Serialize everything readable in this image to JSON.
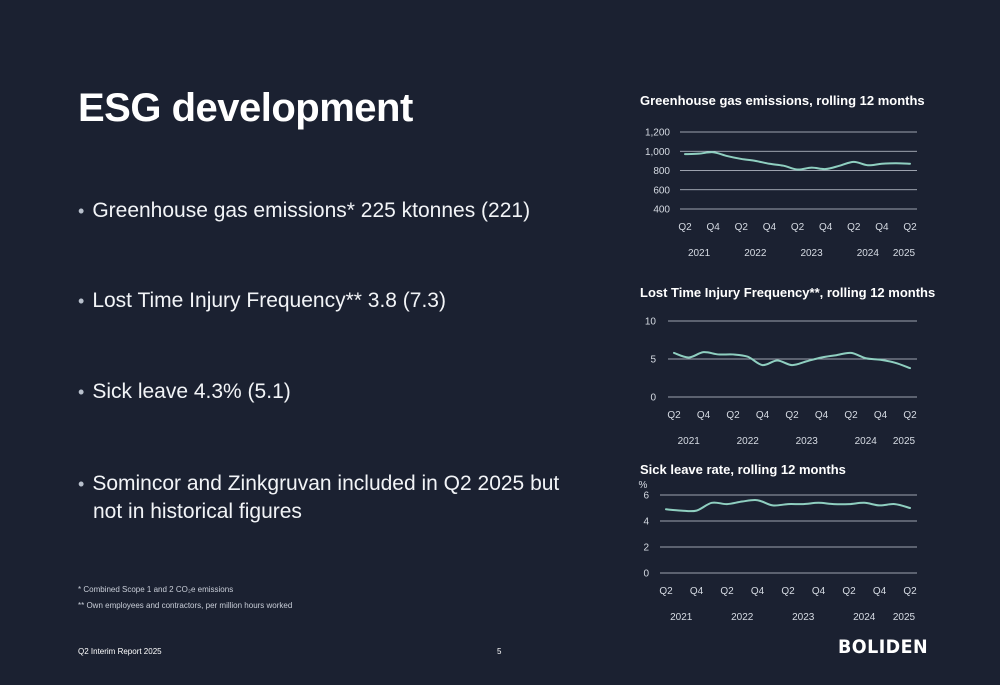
{
  "slide": {
    "title": "ESG development",
    "bullets": [
      "Greenhouse gas emissions* 225 ktonnes (221)",
      "Lost Time Injury Frequency** 3.8 (7.3)",
      "Sick leave 4.3% (5.1)",
      "Somincor and Zinkgruvan included in Q2 2025 but not in historical figures"
    ],
    "footnotes": [
      "* Combined Scope 1 and 2 CO₂e emissions",
      "** Own employees and contractors, per million hours worked"
    ],
    "footer": "Q2 Interim Report 2025",
    "page_number": "5",
    "logo_text": "BOLIDEN"
  },
  "colors": {
    "background": "#1b2131",
    "line": "#8fcfc0",
    "grid": "#c8ced8"
  },
  "chart_data": [
    {
      "type": "line",
      "title": "Greenhouse gas emissions, rolling 12 months",
      "ylabel": "",
      "ylim": [
        400,
        1200
      ],
      "yticks": [
        400,
        600,
        800,
        1000,
        1200
      ],
      "ytick_labels": [
        "400",
        "600",
        "800",
        "1,000",
        "1,200"
      ],
      "quarter_labels": [
        "Q2",
        "Q4",
        "Q2",
        "Q4",
        "Q2",
        "Q4",
        "Q2",
        "Q4",
        "Q2"
      ],
      "year_labels": [
        "2021",
        "2022",
        "2023",
        "2024",
        "2025"
      ],
      "x": [
        "2021 Q2",
        "2021 Q3",
        "2021 Q4",
        "2022 Q1",
        "2022 Q2",
        "2022 Q3",
        "2022 Q4",
        "2023 Q1",
        "2023 Q2",
        "2023 Q3",
        "2023 Q4",
        "2024 Q1",
        "2024 Q2",
        "2024 Q3",
        "2024 Q4",
        "2025 Q1",
        "2025 Q2"
      ],
      "values": [
        970,
        975,
        990,
        950,
        920,
        900,
        870,
        850,
        810,
        830,
        815,
        850,
        890,
        855,
        870,
        875,
        870
      ]
    },
    {
      "type": "line",
      "title": "Lost Time Injury Frequency**, rolling 12 months",
      "ylabel": "",
      "ylim": [
        0,
        10
      ],
      "yticks": [
        0,
        5,
        10
      ],
      "ytick_labels": [
        "0",
        "5",
        "10"
      ],
      "quarter_labels": [
        "Q2",
        "Q4",
        "Q2",
        "Q4",
        "Q2",
        "Q4",
        "Q2",
        "Q4",
        "Q2"
      ],
      "year_labels": [
        "2021",
        "2022",
        "2023",
        "2024",
        "2025"
      ],
      "x": [
        "2021 Q2",
        "2021 Q3",
        "2021 Q4",
        "2022 Q1",
        "2022 Q2",
        "2022 Q3",
        "2022 Q4",
        "2023 Q1",
        "2023 Q2",
        "2023 Q3",
        "2023 Q4",
        "2024 Q1",
        "2024 Q2",
        "2024 Q3",
        "2024 Q4",
        "2025 Q1",
        "2025 Q2"
      ],
      "values": [
        5.8,
        5.2,
        5.9,
        5.6,
        5.6,
        5.3,
        4.2,
        4.8,
        4.2,
        4.7,
        5.2,
        5.5,
        5.8,
        5.1,
        4.9,
        4.5,
        3.8
      ]
    },
    {
      "type": "line",
      "title": "Sick leave rate, rolling 12 months",
      "ylabel": "%",
      "ylim": [
        0,
        6
      ],
      "yticks": [
        0,
        2,
        4,
        6
      ],
      "ytick_labels": [
        "0",
        "2",
        "4",
        "6"
      ],
      "quarter_labels": [
        "Q2",
        "Q4",
        "Q2",
        "Q4",
        "Q2",
        "Q4",
        "Q2",
        "Q4",
        "Q2"
      ],
      "year_labels": [
        "2021",
        "2022",
        "2023",
        "2024",
        "2025"
      ],
      "x": [
        "2021 Q2",
        "2021 Q3",
        "2021 Q4",
        "2022 Q1",
        "2022 Q2",
        "2022 Q3",
        "2022 Q4",
        "2023 Q1",
        "2023 Q2",
        "2023 Q3",
        "2023 Q4",
        "2024 Q1",
        "2024 Q2",
        "2024 Q3",
        "2024 Q4",
        "2025 Q1",
        "2025 Q2"
      ],
      "values": [
        4.9,
        4.8,
        4.8,
        5.4,
        5.3,
        5.5,
        5.6,
        5.2,
        5.3,
        5.3,
        5.4,
        5.3,
        5.3,
        5.4,
        5.2,
        5.3,
        5.0
      ]
    }
  ]
}
